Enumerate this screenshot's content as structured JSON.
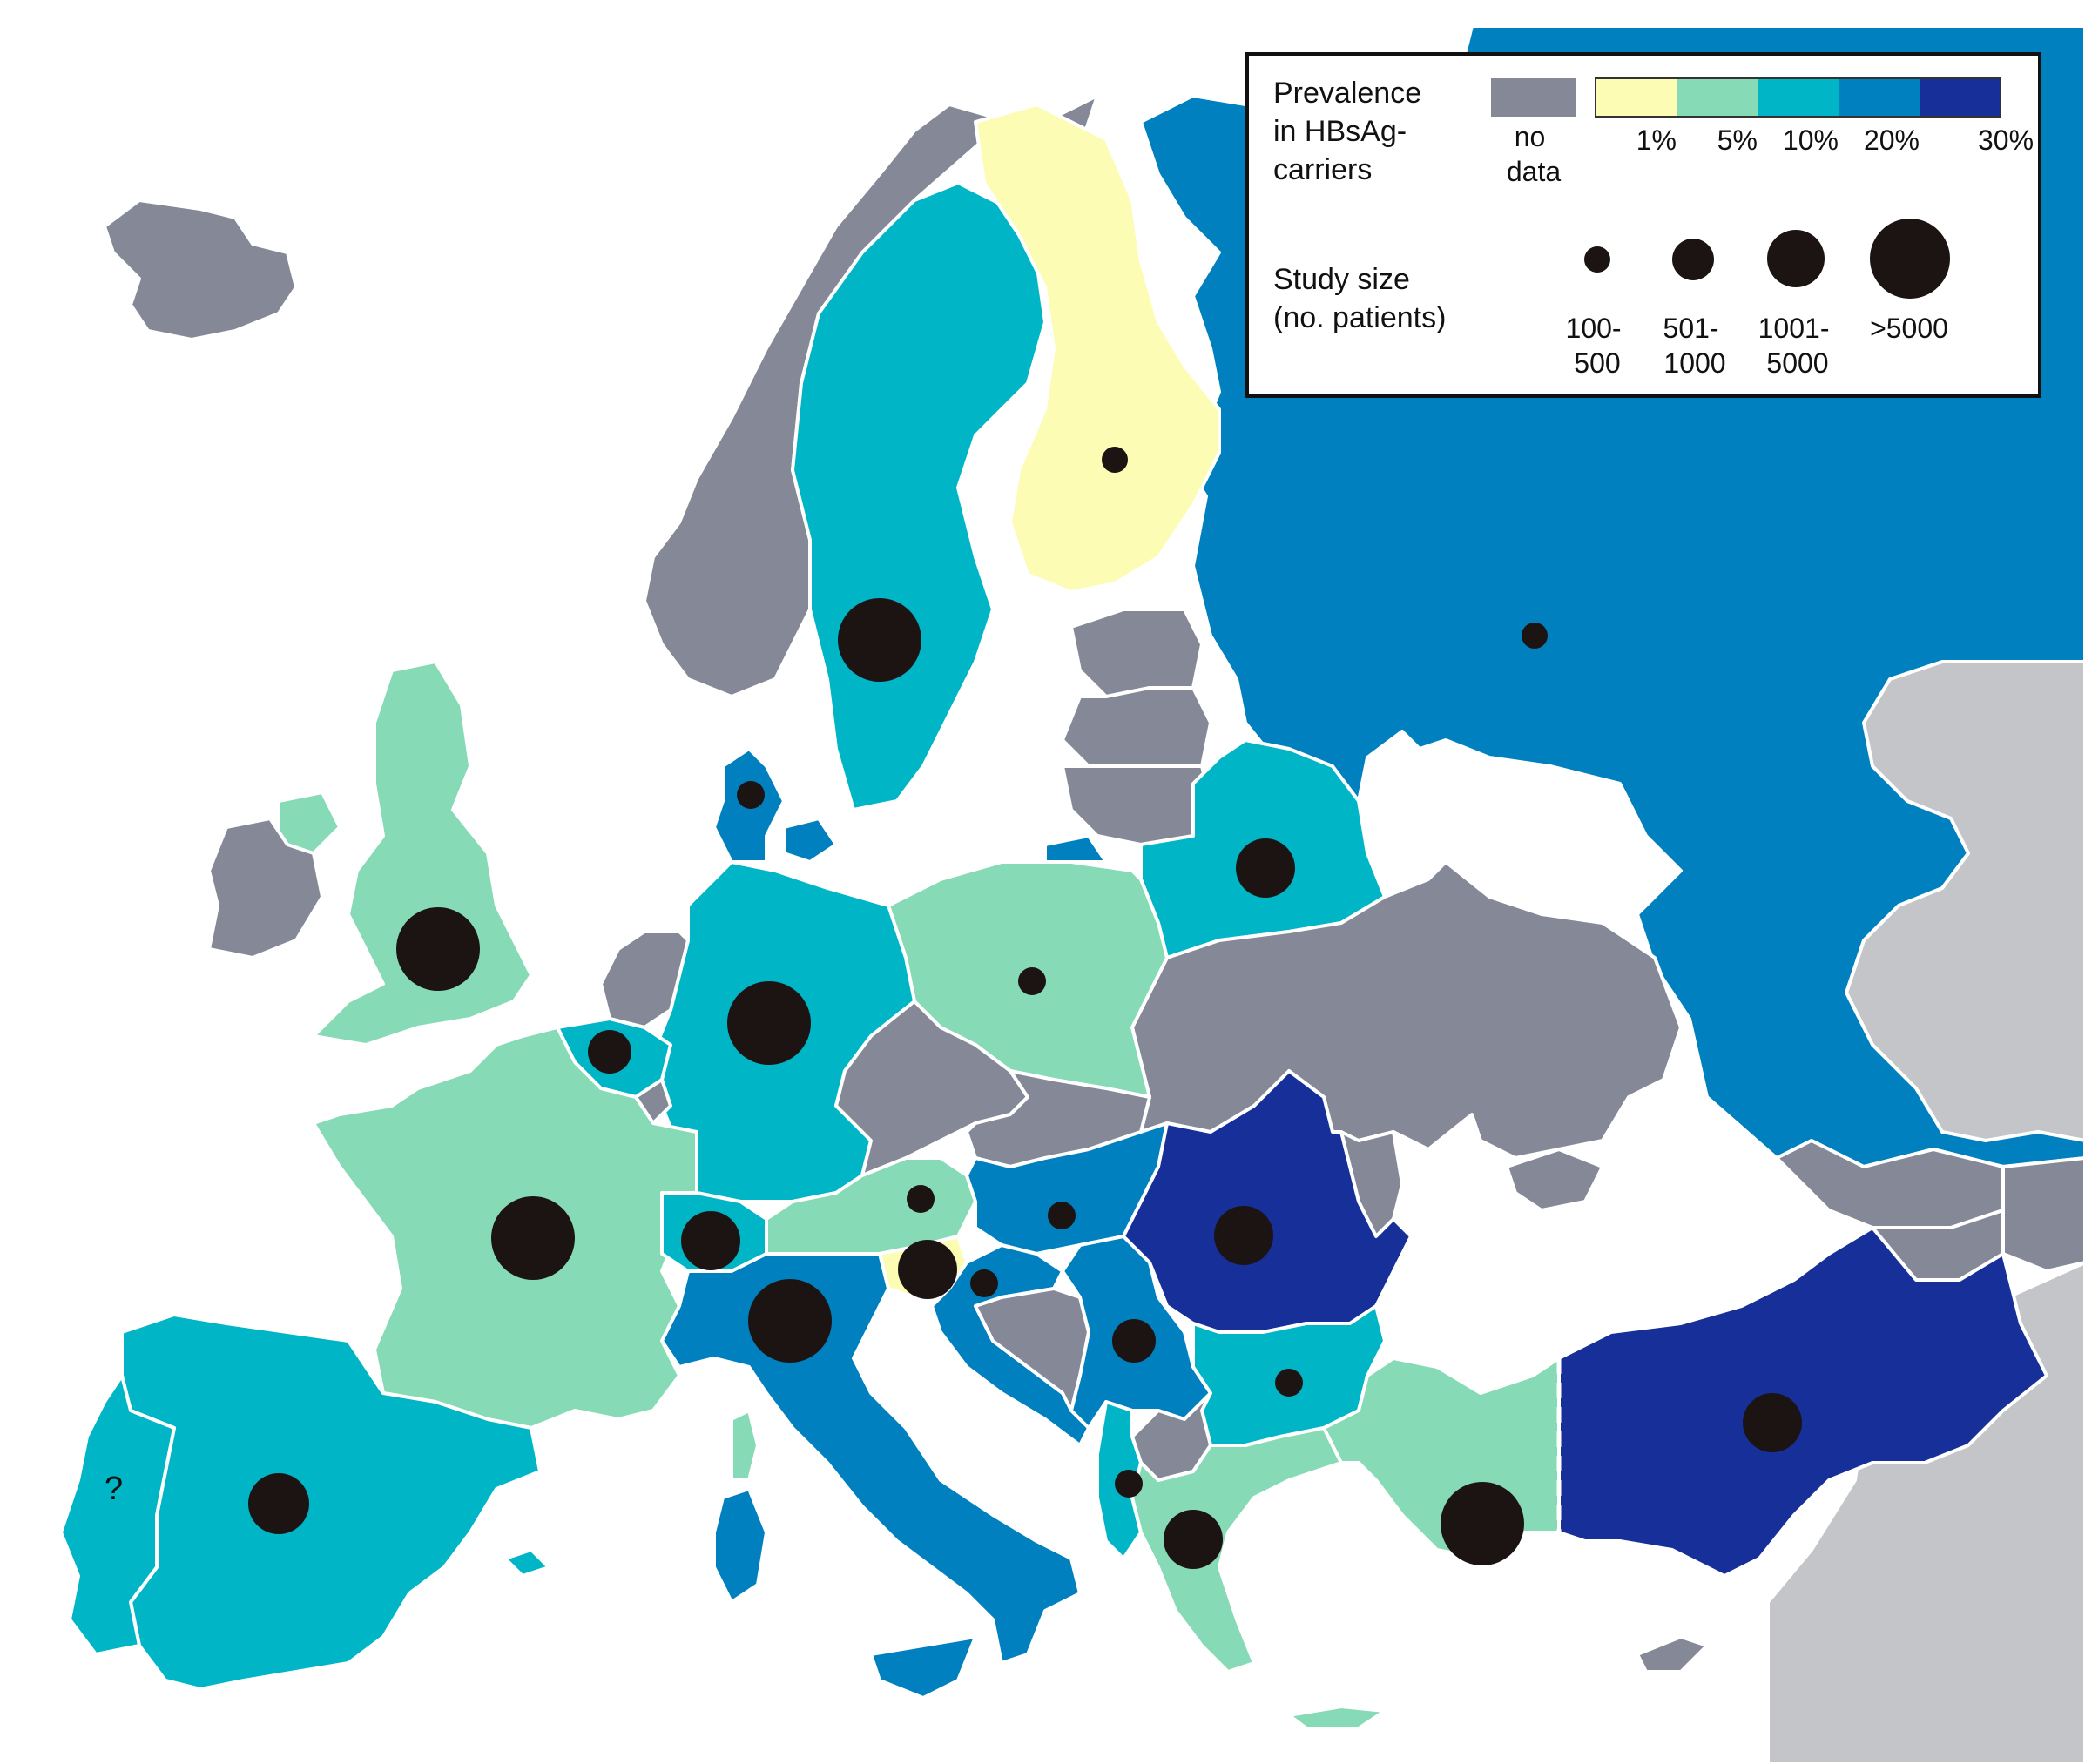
{
  "legend": {
    "prevalence_title_lines": [
      "Prevalence",
      "in HBsAg-",
      "carriers"
    ],
    "no_data_lines": [
      "no",
      "data"
    ],
    "scale_labels": [
      "1%",
      "5%",
      "10%",
      "20%",
      "30%"
    ],
    "scale_colors": [
      "#fcfcb4",
      "#86dab6",
      "#00b6c6",
      "#0080bf",
      "#172f98"
    ],
    "no_data_color": "#858896",
    "size_title_lines": [
      "Study size",
      "(no. patients)"
    ],
    "size_classes": [
      {
        "lines": [
          "100-",
          "500"
        ]
      },
      {
        "lines": [
          "501-",
          "1000"
        ]
      },
      {
        "lines": [
          "1001-",
          "5000"
        ]
      },
      {
        "lines": [
          ">5000"
        ]
      }
    ]
  },
  "colors": {
    "water": "#ffffff",
    "outside": "#c3c5c9",
    "marker": "#1c1412",
    "border": "#ffffff"
  },
  "annotations": {
    "portugal_mark": "?"
  }
}
